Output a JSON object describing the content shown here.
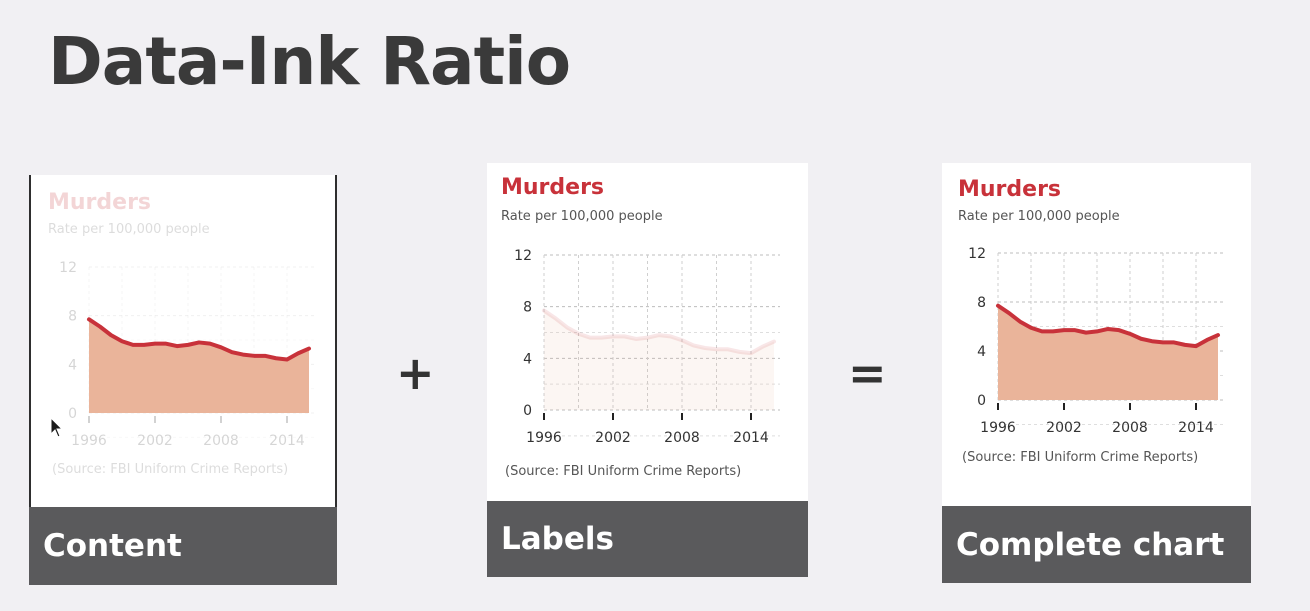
{
  "slide": {
    "title": "Data-Ink Ratio",
    "plus_symbol": "+",
    "equals_symbol": "="
  },
  "colors": {
    "accent": "#c8323a",
    "fill": "#eab49a",
    "caption_bar": "#5a5a5c",
    "title": "#3a3a3a",
    "background": "#f1f0f3"
  },
  "panels": [
    {
      "caption": "Content",
      "variant": "content"
    },
    {
      "caption": "Labels",
      "variant": "labels"
    },
    {
      "caption": "Complete chart",
      "variant": "complete"
    }
  ],
  "chart_data": {
    "type": "area",
    "title": "Murders",
    "subtitle": "Rate per 100,000 people",
    "source": "(Source: FBI Uniform Crime Reports)",
    "x": [
      1996,
      1997,
      1998,
      1999,
      2000,
      2001,
      2002,
      2003,
      2004,
      2005,
      2006,
      2007,
      2008,
      2009,
      2010,
      2011,
      2012,
      2013,
      2014,
      2015,
      2016
    ],
    "values": [
      7.7,
      7.1,
      6.4,
      5.9,
      5.6,
      5.6,
      5.7,
      5.7,
      5.5,
      5.6,
      5.8,
      5.7,
      5.4,
      5.0,
      4.8,
      4.7,
      4.7,
      4.5,
      4.4,
      4.9,
      5.3
    ],
    "xlim": [
      1996,
      2016
    ],
    "ylim": [
      0,
      12
    ],
    "x_ticks": [
      1996,
      2002,
      2008,
      2014
    ],
    "y_ticks": [
      0,
      4,
      8,
      12
    ],
    "grid": true
  }
}
